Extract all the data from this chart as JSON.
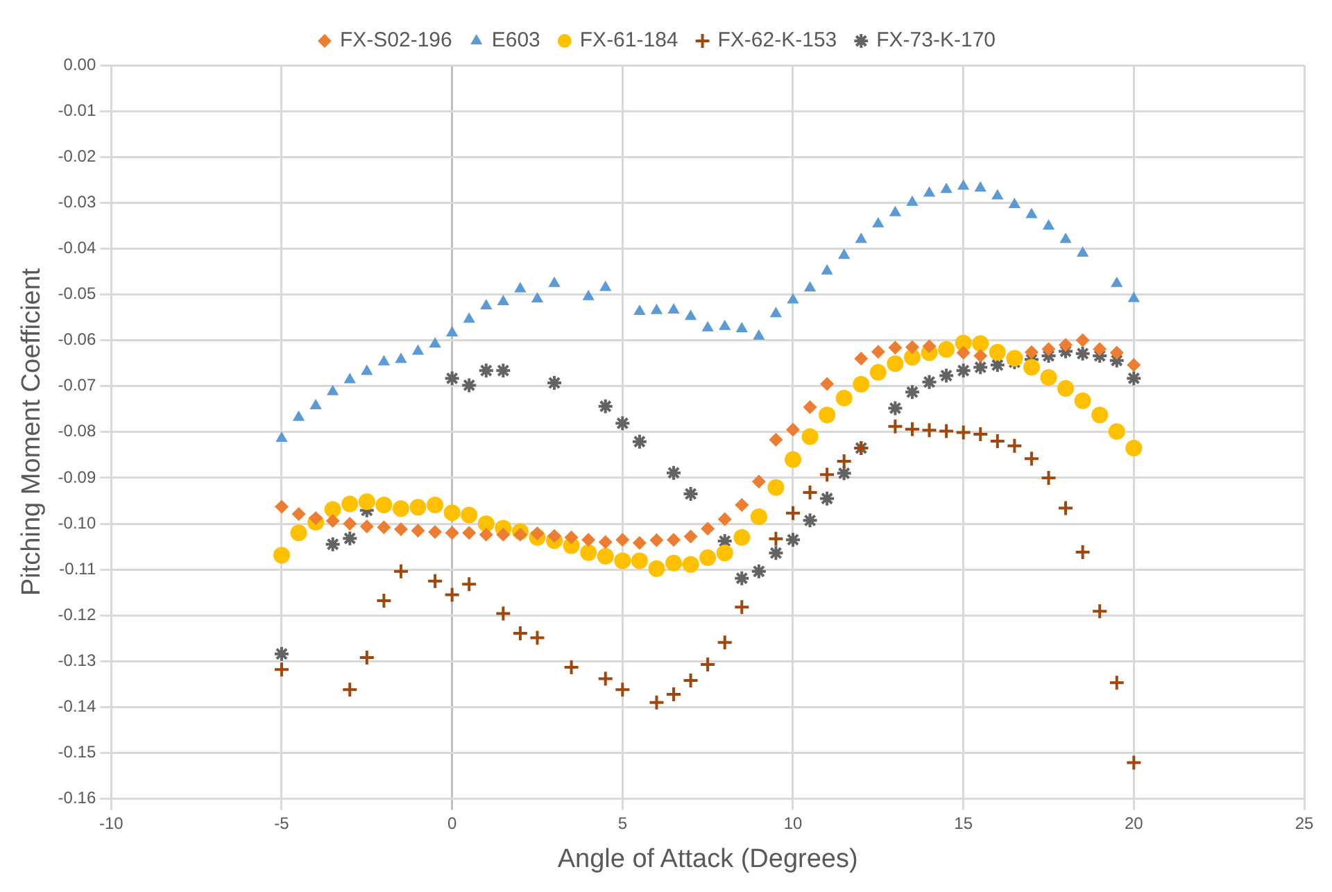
{
  "chart_data": {
    "type": "scatter",
    "xlabel": "Angle of Attack (Degrees)",
    "ylabel": "Pitching Moment Coefficient",
    "legend": "top",
    "grid": true,
    "xlim": [
      -10,
      25
    ],
    "xticks": [
      -10,
      -5,
      0,
      5,
      10,
      15,
      20,
      25
    ],
    "ylim": [
      -0.16,
      0
    ],
    "yticks": [
      {
        "value": 0,
        "label": "0.00"
      },
      {
        "value": -0.01,
        "label": "-0.01"
      },
      {
        "value": -0.02,
        "label": "-0.02"
      },
      {
        "value": -0.03,
        "label": "-0.03"
      },
      {
        "value": -0.04,
        "label": "-0.04"
      },
      {
        "value": -0.05,
        "label": "-0.05"
      },
      {
        "value": -0.06,
        "label": "-0.06"
      },
      {
        "value": -0.07,
        "label": "-0.07"
      },
      {
        "value": -0.08,
        "label": "-0.08"
      },
      {
        "value": -0.09,
        "label": "-0.09"
      },
      {
        "value": -0.1,
        "label": "-0.10"
      },
      {
        "value": -0.11,
        "label": "-0.11"
      },
      {
        "value": -0.12,
        "label": "-0.12"
      },
      {
        "value": -0.13,
        "label": "-0.13"
      },
      {
        "value": -0.14,
        "label": "-0.14"
      },
      {
        "value": -0.15,
        "label": "-0.15"
      },
      {
        "value": -0.16,
        "label": "-0.16"
      }
    ],
    "series": [
      {
        "name": "FX-S02-196",
        "color": "#ed7d31",
        "marker": "diamond",
        "x": [
          -5,
          -4.5,
          -4,
          -3.5,
          -3,
          -2.5,
          -2,
          -1.5,
          -1,
          -0.5,
          0,
          0.5,
          1,
          1.5,
          2,
          2.5,
          3,
          3.5,
          4,
          4.5,
          5,
          5.5,
          6,
          6.5,
          7,
          7.5,
          8,
          8.5,
          9,
          9.5,
          10,
          10.5,
          11,
          12,
          12.5,
          13,
          13.5,
          14,
          15,
          15.5,
          17,
          17.5,
          18,
          18.5,
          19,
          19.5,
          20
        ],
        "values": [
          -0.0963,
          -0.0979,
          -0.0988,
          -0.0994,
          -0.1,
          -0.1006,
          -0.1008,
          -0.1012,
          -0.1015,
          -0.1018,
          -0.102,
          -0.102,
          -0.1024,
          -0.1024,
          -0.1024,
          -0.1021,
          -0.1027,
          -0.103,
          -0.1035,
          -0.104,
          -0.1035,
          -0.1042,
          -0.1036,
          -0.1035,
          -0.1028,
          -0.1011,
          -0.099,
          -0.0959,
          -0.0908,
          -0.0817,
          -0.0795,
          -0.0746,
          -0.0695,
          -0.064,
          -0.0625,
          -0.0616,
          -0.0615,
          -0.0613,
          -0.0627,
          -0.0634,
          -0.0626,
          -0.0619,
          -0.061,
          -0.06,
          -0.0619,
          -0.0627,
          -0.0654
        ]
      },
      {
        "name": "E603",
        "color": "#5b9bd5",
        "marker": "triangle",
        "x": [
          -5,
          -4.5,
          -4,
          -3.5,
          -3,
          -2.5,
          -2,
          -1.5,
          -1,
          -0.5,
          0,
          0.5,
          1,
          1.5,
          2,
          2.5,
          3,
          4,
          4.5,
          5.5,
          6,
          6.5,
          7,
          7.5,
          8,
          8.5,
          9,
          9.5,
          10,
          10.5,
          11,
          11.5,
          12,
          12.5,
          13,
          13.5,
          14,
          14.5,
          15,
          15.5,
          16,
          16.5,
          17,
          17.5,
          18,
          18.5,
          19.5,
          20
        ],
        "values": [
          -0.0814,
          -0.0768,
          -0.0743,
          -0.0712,
          -0.0686,
          -0.0668,
          -0.0647,
          -0.0642,
          -0.0624,
          -0.0608,
          -0.0584,
          -0.0554,
          -0.0525,
          -0.0516,
          -0.0488,
          -0.051,
          -0.0476,
          -0.0505,
          -0.0485,
          -0.0537,
          -0.0535,
          -0.0534,
          -0.0548,
          -0.0573,
          -0.057,
          -0.0575,
          -0.0591,
          -0.0542,
          -0.0512,
          -0.0486,
          -0.0449,
          -0.0415,
          -0.038,
          -0.0346,
          -0.0322,
          -0.0299,
          -0.0279,
          -0.0271,
          -0.0264,
          -0.0268,
          -0.0285,
          -0.0304,
          -0.0326,
          -0.0351,
          -0.038,
          -0.041,
          -0.0476,
          -0.0509
        ]
      },
      {
        "name": "FX-61-184",
        "color": "#ffc000",
        "marker": "circle",
        "x": [
          -5,
          -4.5,
          -4,
          -3.5,
          -3,
          -2.5,
          -2,
          -1.5,
          -1,
          -0.5,
          0,
          0.5,
          1,
          1.5,
          2,
          2.5,
          3,
          3.5,
          4,
          4.5,
          5,
          5.5,
          6,
          6.5,
          7,
          7.5,
          8,
          8.5,
          9,
          9.5,
          10,
          10.5,
          11,
          11.5,
          12,
          12.5,
          13,
          13.5,
          14,
          14.5,
          15,
          15.5,
          16,
          16.5,
          17,
          17.5,
          18,
          18.5,
          19,
          19.5,
          20
        ],
        "values": [
          -0.1069,
          -0.102,
          -0.0997,
          -0.0969,
          -0.0957,
          -0.0952,
          -0.0959,
          -0.0967,
          -0.0964,
          -0.0959,
          -0.0976,
          -0.0981,
          -0.1,
          -0.101,
          -0.1017,
          -0.103,
          -0.1037,
          -0.1048,
          -0.1063,
          -0.1071,
          -0.1081,
          -0.1081,
          -0.1098,
          -0.1086,
          -0.1089,
          -0.1074,
          -0.1064,
          -0.103,
          -0.0985,
          -0.0921,
          -0.086,
          -0.081,
          -0.0763,
          -0.0726,
          -0.0696,
          -0.067,
          -0.0651,
          -0.0637,
          -0.0627,
          -0.062,
          -0.0606,
          -0.0607,
          -0.0626,
          -0.0639,
          -0.0659,
          -0.0681,
          -0.0705,
          -0.0732,
          -0.0763,
          -0.0799,
          -0.0835
        ]
      },
      {
        "name": "FX-62-K-153",
        "color": "#9e480e",
        "marker": "cross",
        "x": [
          -5,
          -3,
          -2.5,
          -2,
          -1.5,
          -0.5,
          0,
          0.5,
          1.5,
          2,
          2.5,
          3.5,
          4.5,
          5,
          6,
          6.5,
          7,
          7.5,
          8,
          8.5,
          9.5,
          10,
          10.5,
          11,
          11.5,
          12,
          13,
          13.5,
          14,
          14.5,
          15,
          15.5,
          16,
          16.5,
          17,
          17.5,
          18,
          18.5,
          19,
          19.5,
          20
        ],
        "values": [
          -0.1318,
          -0.1362,
          -0.1292,
          -0.1168,
          -0.1104,
          -0.1125,
          -0.1155,
          -0.1132,
          -0.1196,
          -0.1239,
          -0.1249,
          -0.1313,
          -0.1338,
          -0.1362,
          -0.139,
          -0.1372,
          -0.1342,
          -0.1307,
          -0.1259,
          -0.1182,
          -0.1033,
          -0.0977,
          -0.0932,
          -0.0893,
          -0.0864,
          -0.0835,
          -0.0788,
          -0.0794,
          -0.0796,
          -0.0798,
          -0.0801,
          -0.0805,
          -0.082,
          -0.083,
          -0.0858,
          -0.09,
          -0.0966,
          -0.1062,
          -0.1191,
          -0.1347,
          -0.1521
        ]
      },
      {
        "name": "FX-73-K-170",
        "color": "#636363",
        "x": [
          -5,
          -3.5,
          -3,
          -2.5,
          0,
          0.5,
          1,
          1.5,
          3,
          4.5,
          5,
          5.5,
          6.5,
          7,
          8,
          8.5,
          9,
          9.5,
          10,
          10.5,
          11,
          11.5,
          12,
          13,
          13.5,
          14,
          14.5,
          15,
          15.5,
          16,
          16.5,
          17,
          17.5,
          18,
          18.5,
          19,
          19.5,
          20
        ],
        "values": [
          -0.1284,
          -0.1045,
          -0.1032,
          -0.0971,
          -0.0683,
          -0.0698,
          -0.0666,
          -0.0666,
          -0.0693,
          -0.0744,
          -0.0781,
          -0.0821,
          -0.0889,
          -0.0935,
          -0.1038,
          -0.1119,
          -0.1104,
          -0.1064,
          -0.1035,
          -0.0993,
          -0.0945,
          -0.089,
          -0.0835,
          -0.0748,
          -0.0713,
          -0.0691,
          -0.0677,
          -0.0666,
          -0.0659,
          -0.0654,
          -0.0648,
          -0.0642,
          -0.0634,
          -0.0624,
          -0.0629,
          -0.0634,
          -0.0644,
          -0.0683
        ]
      }
    ]
  }
}
